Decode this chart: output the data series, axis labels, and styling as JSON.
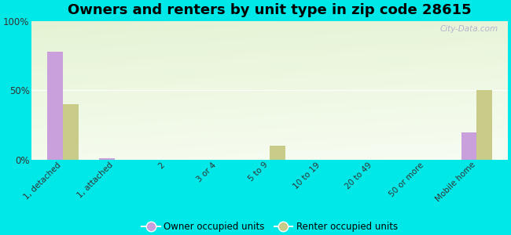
{
  "title": "Owners and renters by unit type in zip code 28615",
  "categories": [
    "1, detached",
    "1, attached",
    "2",
    "3 or 4",
    "5 to 9",
    "10 to 19",
    "20 to 49",
    "50 or more",
    "Mobile home"
  ],
  "owner_values": [
    78,
    1,
    0,
    0,
    0,
    0,
    0,
    0,
    20
  ],
  "renter_values": [
    40,
    0,
    0,
    0,
    10,
    0,
    0,
    0,
    50
  ],
  "owner_color": "#c9a0dc",
  "renter_color": "#c8cc88",
  "background_color": "#00e8e8",
  "ylim": [
    0,
    100
  ],
  "yticks": [
    0,
    50,
    100
  ],
  "ytick_labels": [
    "0%",
    "50%",
    "100%"
  ],
  "bar_width": 0.3,
  "title_fontsize": 13,
  "watermark": "City-Data.com",
  "legend_labels": [
    "Owner occupied units",
    "Renter occupied units"
  ]
}
